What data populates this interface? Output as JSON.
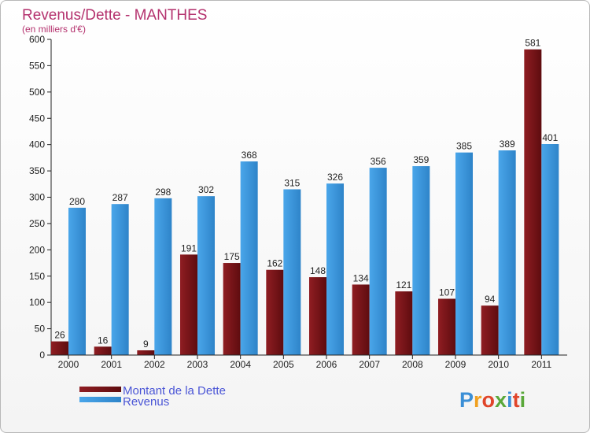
{
  "chart_data": {
    "type": "bar",
    "title": "Revenus/Dette - MANTHES",
    "subtitle": "(en milliers d'€)",
    "categories": [
      "2000",
      "2001",
      "2002",
      "2003",
      "2004",
      "2005",
      "2006",
      "2007",
      "2008",
      "2009",
      "2010",
      "2011"
    ],
    "series": [
      {
        "name": "Montant de la Dette",
        "color": "#7a1216",
        "values": [
          26,
          16,
          9,
          191,
          175,
          162,
          148,
          134,
          121,
          107,
          94,
          581
        ]
      },
      {
        "name": "Revenus",
        "color": "#3b95dd",
        "values": [
          280,
          287,
          298,
          302,
          368,
          315,
          326,
          356,
          359,
          385,
          389,
          401
        ]
      }
    ],
    "ylim": [
      0,
      600
    ],
    "yticks": [
      0,
      50,
      100,
      150,
      200,
      250,
      300,
      350,
      400,
      450,
      500,
      550,
      600
    ],
    "grid": false,
    "legend_position": "bottom-left"
  },
  "logo": {
    "text": "Proxiti",
    "letter_colors": [
      "#3b8fd6",
      "#f0a020",
      "#e0452a",
      "#5aa83a",
      "#3b8fd6",
      "#e0452a",
      "#5aa83a"
    ]
  }
}
